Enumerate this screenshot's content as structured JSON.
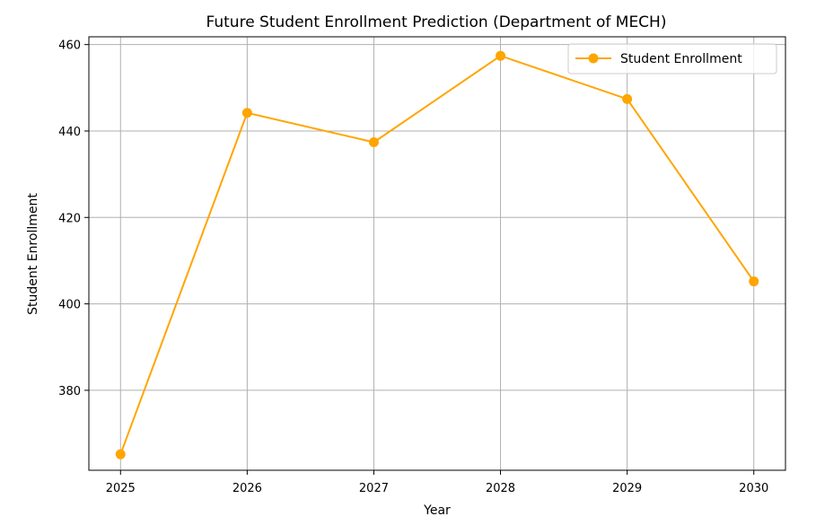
{
  "chart_data": {
    "type": "line",
    "title": "Future Student Enrollment Prediction (Department of MECH)",
    "xlabel": "Year",
    "ylabel": "Student Enrollment",
    "x": [
      2025,
      2026,
      2027,
      2028,
      2029,
      2030
    ],
    "series": [
      {
        "name": "Student Enrollment",
        "values": [
          365.2,
          444.2,
          437.4,
          457.4,
          447.4,
          405.2
        ],
        "color": "#ffa500",
        "marker": "circle"
      }
    ],
    "xlim": [
      2024.75,
      2030.25
    ],
    "ylim": [
      361.5,
      461.8
    ],
    "xticks": [
      2025,
      2026,
      2027,
      2028,
      2029,
      2030
    ],
    "yticks": [
      380,
      400,
      420,
      440,
      460
    ],
    "grid": true,
    "legend": "top-right"
  }
}
